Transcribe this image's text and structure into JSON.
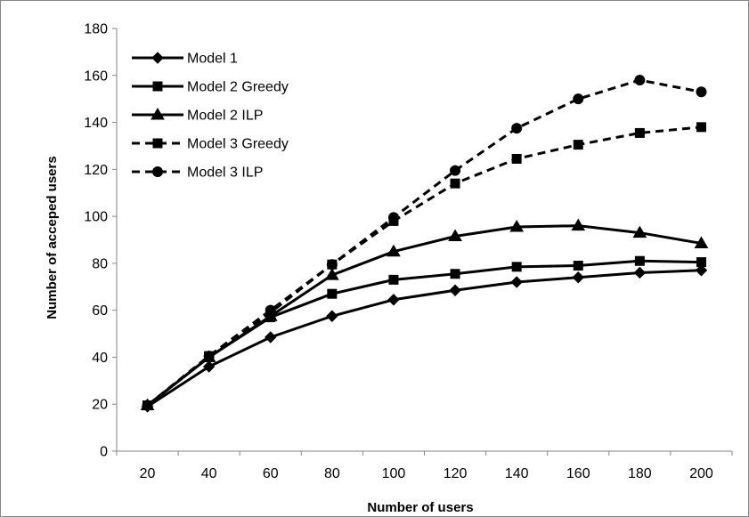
{
  "chart_data": {
    "type": "line",
    "title": "",
    "xlabel": "Number of users",
    "ylabel": "Number of acceped users",
    "categories": [
      "20",
      "40",
      "60",
      "80",
      "100",
      "120",
      "140",
      "160",
      "180",
      "200"
    ],
    "ylim": [
      0,
      180
    ],
    "yticks": [
      "0",
      "20",
      "40",
      "60",
      "80",
      "100",
      "120",
      "140",
      "160",
      "180"
    ],
    "grid": false,
    "legend_position": "top-left",
    "series": [
      {
        "name": "Model 1",
        "marker": "diamond",
        "dash": "solid",
        "values": [
          19,
          36,
          48.5,
          57.5,
          64.5,
          68.5,
          72,
          74,
          76,
          77
        ]
      },
      {
        "name": "Model 2 Greedy",
        "marker": "square",
        "dash": "solid",
        "values": [
          19.5,
          40,
          57,
          67,
          73,
          75.5,
          78.5,
          79,
          81,
          80.5
        ]
      },
      {
        "name": "Model 2 ILP",
        "marker": "triangle",
        "dash": "solid",
        "values": [
          19.5,
          40,
          57.5,
          75,
          85,
          91.5,
          95.5,
          96,
          93,
          88.5
        ]
      },
      {
        "name": "Model 3 Greedy",
        "marker": "square",
        "dash": "dashed",
        "values": [
          19.5,
          40.5,
          59,
          79.5,
          98,
          114,
          124.5,
          130.5,
          135.5,
          138
        ]
      },
      {
        "name": "Model 3 ILP",
        "marker": "circle",
        "dash": "dashed",
        "values": [
          19.5,
          40.5,
          60,
          79.5,
          99.5,
          119.5,
          137.5,
          150,
          158,
          153
        ]
      }
    ],
    "colors": {
      "line": "#000000",
      "axis": "#868686",
      "border": "#868686"
    }
  }
}
